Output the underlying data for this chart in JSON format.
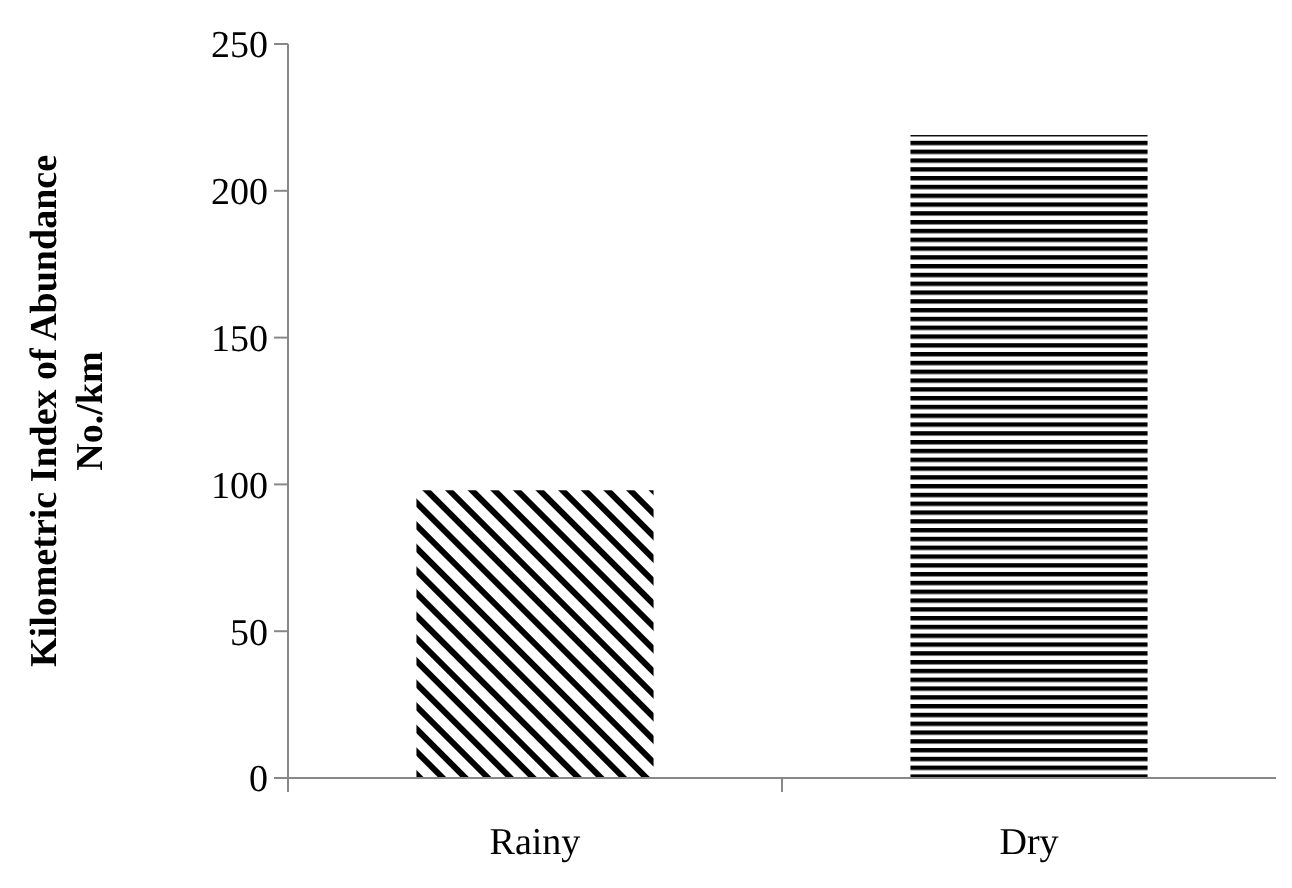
{
  "chart_data": {
    "type": "bar",
    "ylabel": "Kilometric Index of Abundance\nNo./km",
    "categories": [
      "Rainy",
      "Dry"
    ],
    "values": [
      98,
      219
    ],
    "color": "#000000",
    "ylim": [
      0,
      250
    ],
    "yticks": [
      0,
      50,
      100,
      150,
      200,
      250
    ],
    "grid": false
  }
}
